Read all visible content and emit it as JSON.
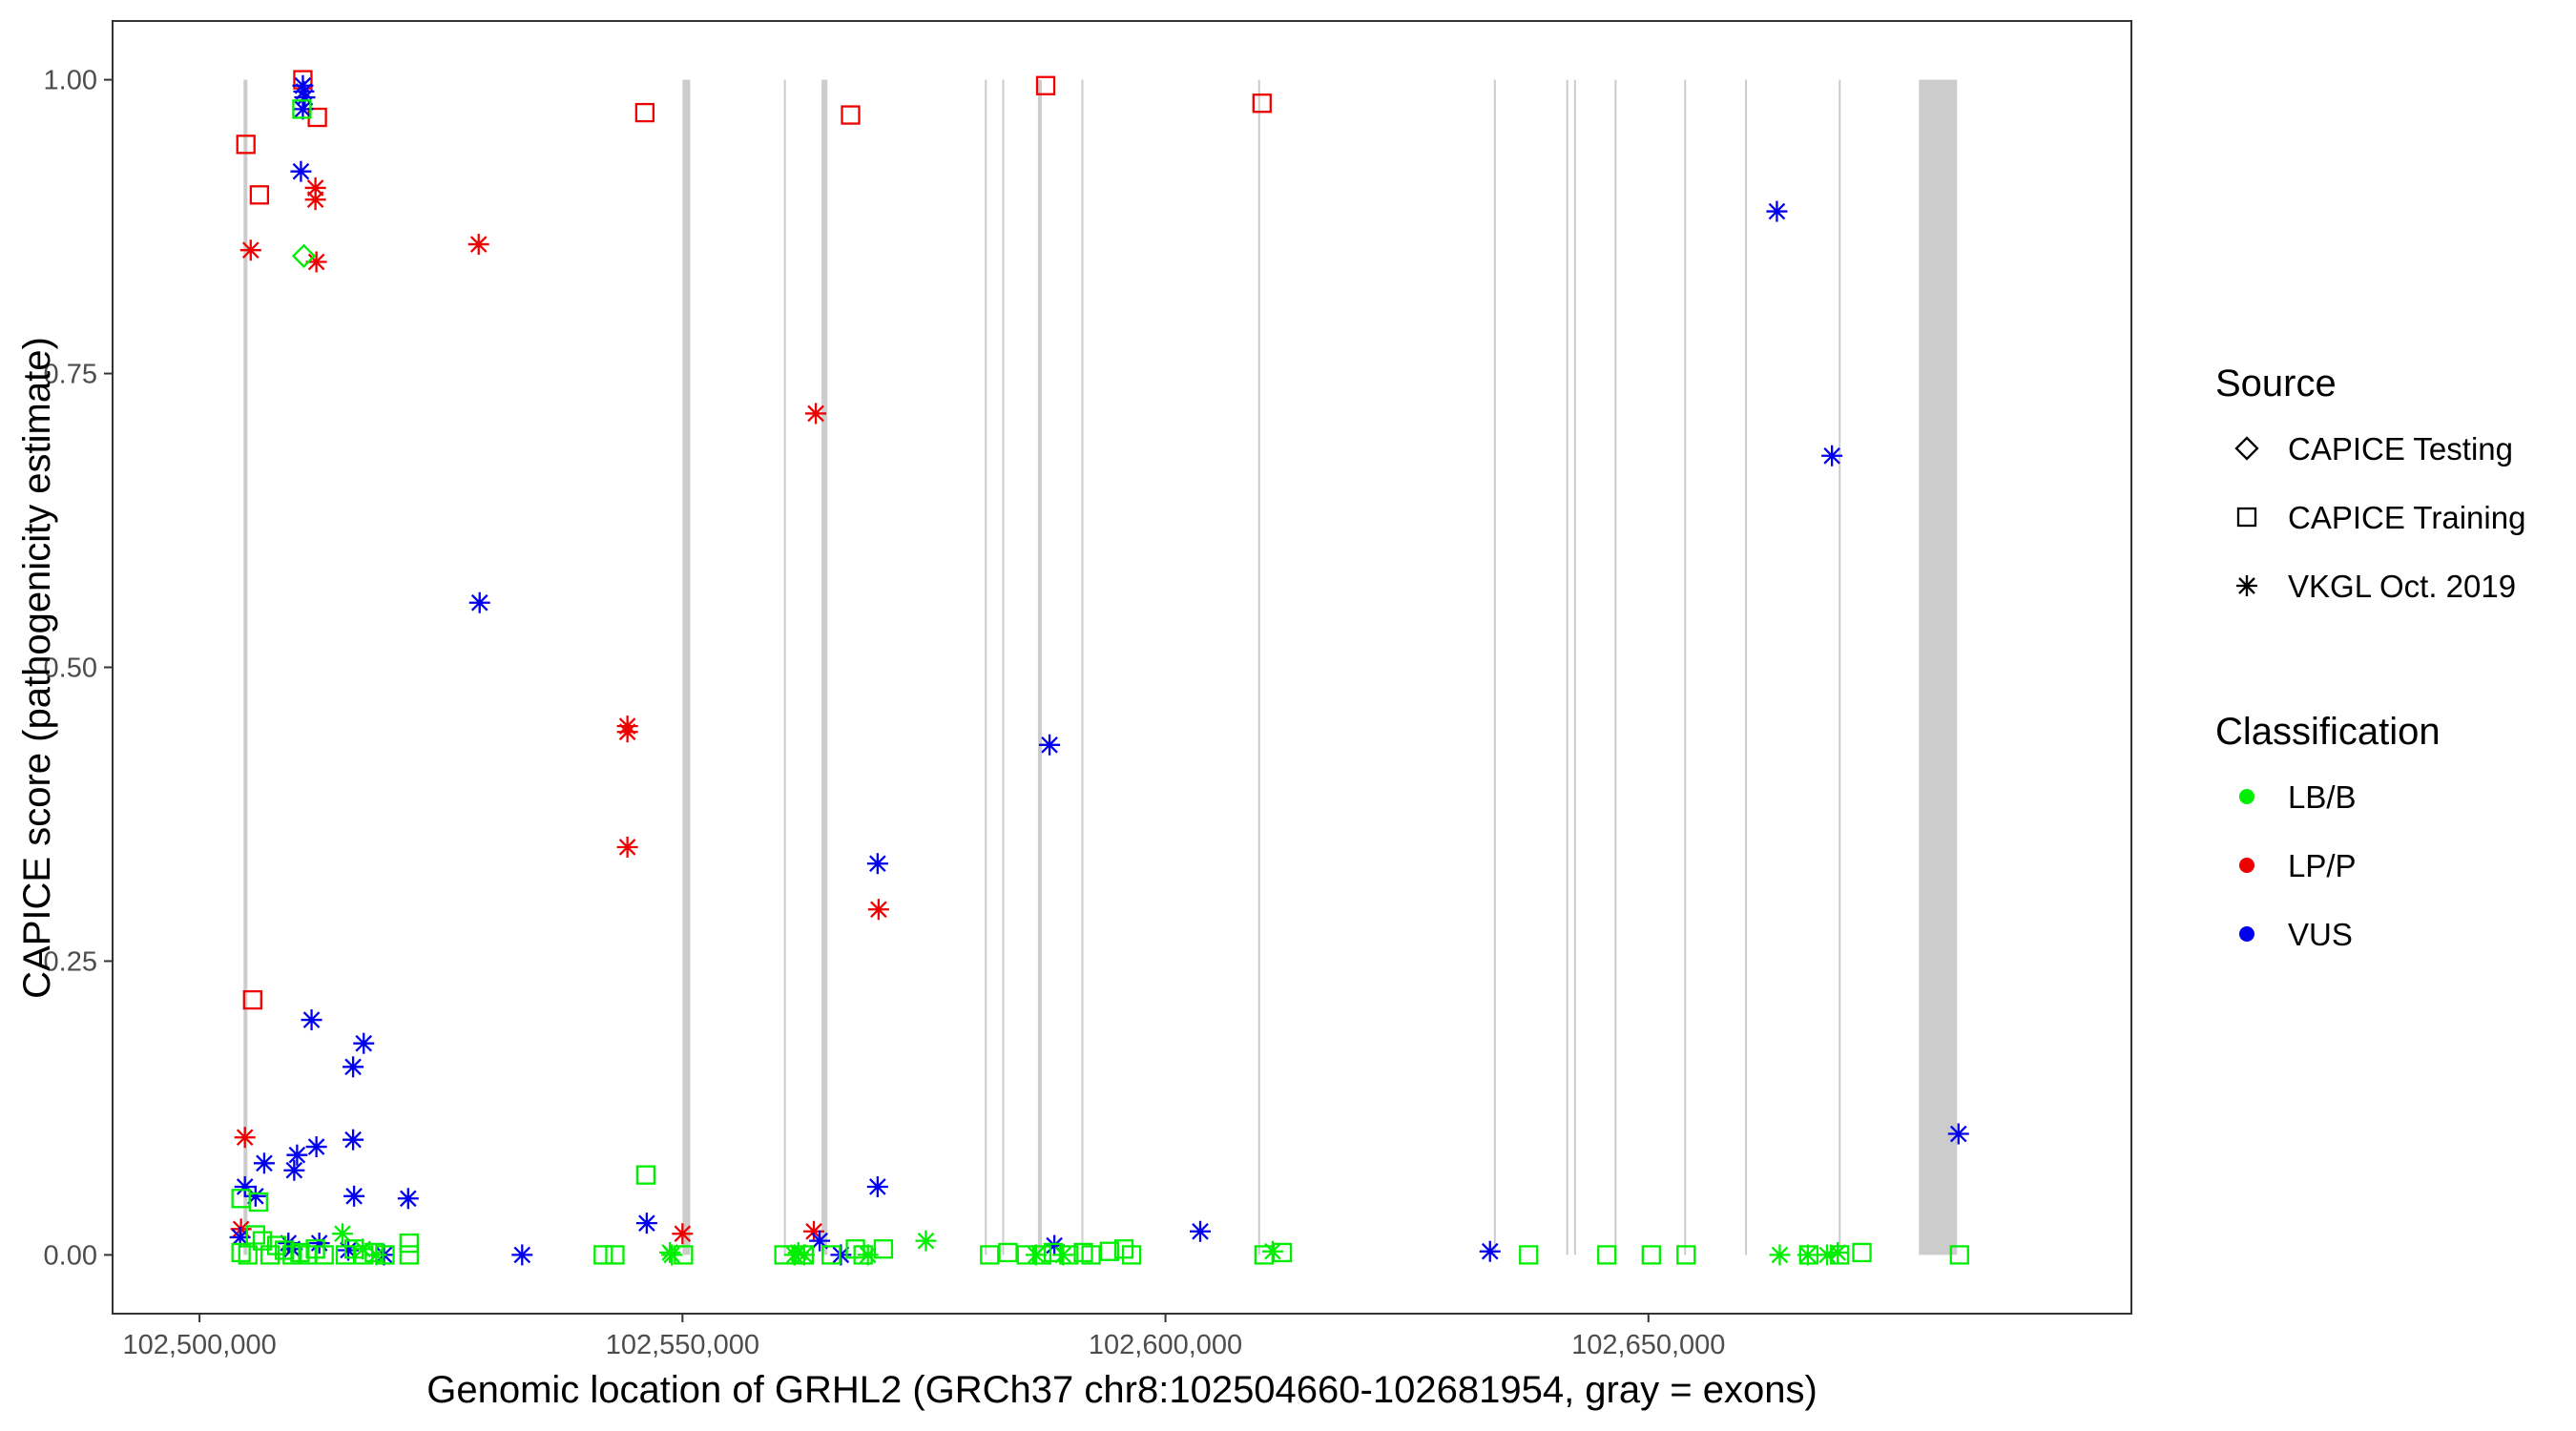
{
  "chart_data": {
    "type": "scatter",
    "xlabel": "Genomic location of GRHL2 (GRCh37 chr8:102504660-102681954, gray = exons)",
    "ylabel": "CAPICE score (pathogenicity estimate)",
    "xlim": [
      102491000,
      102700000
    ],
    "ylim": [
      -0.05,
      1.05
    ],
    "x_ticks": [
      {
        "value": 102500000,
        "label": "102,500,000"
      },
      {
        "value": 102550000,
        "label": "102,550,000"
      },
      {
        "value": 102600000,
        "label": "102,600,000"
      },
      {
        "value": 102650000,
        "label": "102,650,000"
      }
    ],
    "y_ticks": [
      {
        "value": 0,
        "label": "0.00"
      },
      {
        "value": 0.25,
        "label": "0.25"
      },
      {
        "value": 0.5,
        "label": "0.50"
      },
      {
        "value": 0.75,
        "label": "0.75"
      },
      {
        "value": 1.0,
        "label": "1.00"
      }
    ],
    "grid": false,
    "exons": [
      [
        102504560,
        102504960
      ],
      [
        102550000,
        102550800
      ],
      [
        102560500,
        102560700
      ],
      [
        102564400,
        102565000
      ],
      [
        102581300,
        102581500
      ],
      [
        102583100,
        102583300
      ],
      [
        102586800,
        102587200
      ],
      [
        102591300,
        102591500
      ],
      [
        102609600,
        102609800
      ],
      [
        102634000,
        102634200
      ],
      [
        102641500,
        102641700
      ],
      [
        102642300,
        102642500
      ],
      [
        102646500,
        102646700
      ],
      [
        102653700,
        102653900
      ],
      [
        102660000,
        102660200
      ],
      [
        102669700,
        102669900
      ],
      [
        102678000,
        102681954
      ]
    ],
    "legend": {
      "position": "right",
      "source": {
        "title": "Source",
        "entries": [
          {
            "label": "CAPICE Testing",
            "shape": "diamond"
          },
          {
            "label": "CAPICE Training",
            "shape": "square"
          },
          {
            "label": "VKGL Oct. 2019",
            "shape": "asterisk"
          }
        ]
      },
      "classification": {
        "title": "Classification",
        "entries": [
          {
            "label": "LB/B",
            "color": "#00ee00"
          },
          {
            "label": "LP/P",
            "color": "#ee0000"
          },
          {
            "label": "VUS",
            "color": "#0000ee"
          }
        ]
      }
    },
    "series": [
      {
        "classification": "LP/P",
        "source": "CAPICE Training",
        "points": [
          [
            102504800,
            0.945
          ],
          [
            102506200,
            0.902
          ],
          [
            102510700,
            1.0
          ],
          [
            102512200,
            0.968
          ],
          [
            102505500,
            0.217
          ],
          [
            102546100,
            0.972
          ],
          [
            102567400,
            0.97
          ],
          [
            102587600,
            0.995
          ],
          [
            102610000,
            0.98
          ]
        ]
      },
      {
        "classification": "LP/P",
        "source": "VKGL Oct. 2019",
        "points": [
          [
            102505300,
            0.855
          ],
          [
            102512000,
            0.908
          ],
          [
            102512000,
            0.898
          ],
          [
            102512100,
            0.845
          ],
          [
            102528900,
            0.86
          ],
          [
            102544300,
            0.45
          ],
          [
            102544300,
            0.445
          ],
          [
            102544300,
            0.347
          ],
          [
            102504700,
            0.1
          ],
          [
            102504300,
            0.022
          ],
          [
            102550000,
            0.018
          ],
          [
            102563800,
            0.716
          ],
          [
            102570300,
            0.294
          ],
          [
            102563600,
            0.02
          ]
        ]
      },
      {
        "classification": "VUS",
        "source": "VKGL Oct. 2019",
        "points": [
          [
            102510700,
            0.995
          ],
          [
            102510800,
            0.99
          ],
          [
            102510900,
            0.985
          ],
          [
            102510700,
            0.975
          ],
          [
            102510500,
            0.922
          ],
          [
            102511600,
            0.2
          ],
          [
            102517000,
            0.18
          ],
          [
            102515900,
            0.16
          ],
          [
            102529000,
            0.555
          ],
          [
            102506700,
            0.078
          ],
          [
            102504700,
            0.058
          ],
          [
            102505800,
            0.05
          ],
          [
            102509800,
            0.072
          ],
          [
            102510100,
            0.085
          ],
          [
            102512100,
            0.092
          ],
          [
            102515900,
            0.098
          ],
          [
            102516000,
            0.05
          ],
          [
            102521600,
            0.048
          ],
          [
            102504200,
            0.015
          ],
          [
            102509200,
            0.01
          ],
          [
            102512400,
            0.01
          ],
          [
            102509600,
            0.005
          ],
          [
            102515400,
            0.004
          ],
          [
            102519100,
            0.0
          ],
          [
            102533400,
            0.0
          ],
          [
            102546300,
            0.027
          ],
          [
            102570200,
            0.333
          ],
          [
            102570200,
            0.058
          ],
          [
            102564200,
            0.012
          ],
          [
            102566400,
            0.0
          ],
          [
            102588000,
            0.434
          ],
          [
            102588500,
            0.008
          ],
          [
            102603600,
            0.02
          ],
          [
            102633600,
            0.003
          ],
          [
            102663300,
            0.888
          ],
          [
            102669000,
            0.68
          ],
          [
            102682100,
            0.103
          ]
        ]
      },
      {
        "classification": "LB/B",
        "source": "CAPICE Testing",
        "points": [
          [
            102510800,
            0.85
          ]
        ]
      },
      {
        "classification": "LB/B",
        "source": "CAPICE Training",
        "points": [
          [
            102510600,
            0.975
          ],
          [
            102504300,
            0.048
          ],
          [
            102506100,
            0.045
          ],
          [
            102504300,
            0.002
          ],
          [
            102505000,
            0.0
          ],
          [
            102505800,
            0.017
          ],
          [
            102506500,
            0.012
          ],
          [
            102507300,
            0.0
          ],
          [
            102508000,
            0.008
          ],
          [
            102508800,
            0.004
          ],
          [
            102509600,
            0.0
          ],
          [
            102510400,
            0.002
          ],
          [
            102511200,
            0.0
          ],
          [
            102512000,
            0.005
          ],
          [
            102512900,
            0.0
          ],
          [
            102515100,
            0.0
          ],
          [
            102516000,
            0.005
          ],
          [
            102517000,
            0.0
          ],
          [
            102518100,
            0.002
          ],
          [
            102519200,
            0.0
          ],
          [
            102521700,
            0.01
          ],
          [
            102521700,
            0.0
          ],
          [
            102546200,
            0.068
          ],
          [
            102541800,
            0.0
          ],
          [
            102543000,
            0.0
          ],
          [
            102550100,
            0.0
          ],
          [
            102560500,
            0.0
          ],
          [
            102562600,
            0.0
          ],
          [
            102565400,
            0.0
          ],
          [
            102567900,
            0.005
          ],
          [
            102568700,
            0.0
          ],
          [
            102570800,
            0.005
          ],
          [
            102581800,
            0.0
          ],
          [
            102583700,
            0.002
          ],
          [
            102585600,
            0.0
          ],
          [
            102587200,
            0.0
          ],
          [
            102588400,
            0.002
          ],
          [
            102590000,
            0.0
          ],
          [
            102591500,
            0.002
          ],
          [
            102592300,
            0.0
          ],
          [
            102594200,
            0.003
          ],
          [
            102595700,
            0.005
          ],
          [
            102596500,
            0.0
          ],
          [
            102610200,
            0.0
          ],
          [
            102612100,
            0.002
          ],
          [
            102637600,
            0.0
          ],
          [
            102645700,
            0.0
          ],
          [
            102650300,
            0.0
          ],
          [
            102653900,
            0.0
          ],
          [
            102666600,
            0.0
          ],
          [
            102669800,
            0.0
          ],
          [
            102672100,
            0.002
          ],
          [
            102682200,
            0.0
          ]
        ]
      },
      {
        "classification": "LB/B",
        "source": "VKGL Oct. 2019",
        "points": [
          [
            102514800,
            0.018
          ],
          [
            102516900,
            0.005
          ],
          [
            102518300,
            0.0
          ],
          [
            102548700,
            0.002
          ],
          [
            102548900,
            0.0
          ],
          [
            102561600,
            0.0
          ],
          [
            102562000,
            0.002
          ],
          [
            102562600,
            0.0
          ],
          [
            102569200,
            0.0
          ],
          [
            102575200,
            0.012
          ],
          [
            102586600,
            0.0
          ],
          [
            102589400,
            0.0
          ],
          [
            102611100,
            0.003
          ],
          [
            102663600,
            0.0
          ],
          [
            102666500,
            0.0
          ],
          [
            102668500,
            0.0
          ],
          [
            102669600,
            0.002
          ]
        ]
      }
    ]
  }
}
